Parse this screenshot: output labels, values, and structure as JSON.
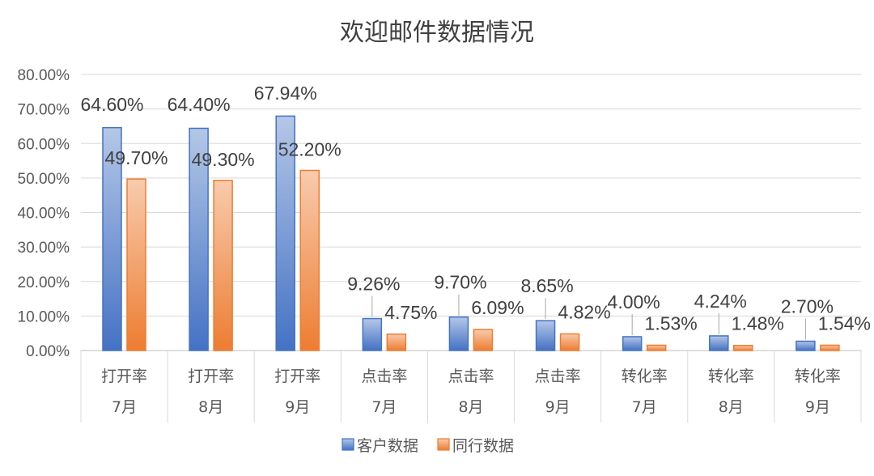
{
  "chart_data": {
    "type": "bar",
    "title": "欢迎邮件数据情况",
    "categories": [
      {
        "metric": "打开率",
        "month": "7月"
      },
      {
        "metric": "打开率",
        "month": "8月"
      },
      {
        "metric": "打开率",
        "month": "9月"
      },
      {
        "metric": "点击率",
        "month": "7月"
      },
      {
        "metric": "点击率",
        "month": "8月"
      },
      {
        "metric": "点击率",
        "month": "9月"
      },
      {
        "metric": "转化率",
        "month": "7月"
      },
      {
        "metric": "转化率",
        "month": "8月"
      },
      {
        "metric": "转化率",
        "month": "9月"
      }
    ],
    "series": [
      {
        "name": "客户数据",
        "values": [
          64.6,
          64.4,
          67.94,
          9.26,
          9.7,
          8.65,
          4.0,
          4.24,
          2.7
        ],
        "labels": [
          "64.60%",
          "64.40%",
          "67.94%",
          "9.26%",
          "9.70%",
          "8.65%",
          "4.00%",
          "4.24%",
          "2.70%"
        ],
        "color": "#4472C4",
        "color_light": "#B4C7E7"
      },
      {
        "name": "同行数据",
        "values": [
          49.7,
          49.3,
          52.2,
          4.75,
          6.09,
          4.82,
          1.53,
          1.48,
          1.54
        ],
        "labels": [
          "49.70%",
          "49.30%",
          "52.20%",
          "4.75%",
          "6.09%",
          "4.82%",
          "1.53%",
          "1.48%",
          "1.54%"
        ],
        "color": "#ED7D31",
        "color_light": "#F8CBAD"
      }
    ],
    "y_ticks": [
      "0.00%",
      "10.00%",
      "20.00%",
      "30.00%",
      "40.00%",
      "50.00%",
      "60.00%",
      "70.00%",
      "80.00%"
    ],
    "ylim": [
      0,
      80
    ],
    "grid": true,
    "legend": "bottom-center"
  }
}
